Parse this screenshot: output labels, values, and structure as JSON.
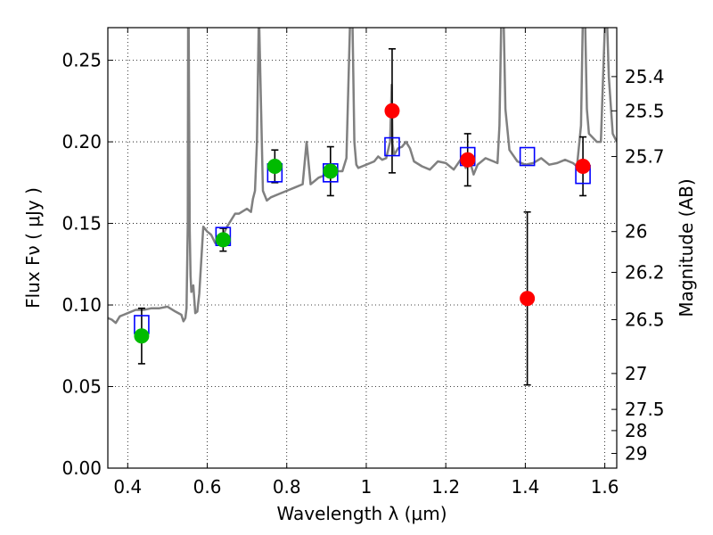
{
  "chart_data": {
    "type": "scatter",
    "xlabel": "Wavelength  λ (μm)",
    "ylabel": "Flux  Fν  ( μJy )",
    "ylabel_right": "Magnitude (AB)",
    "xlim": [
      0.35,
      1.63
    ],
    "ylim": [
      0.0,
      0.27
    ],
    "grid": true,
    "x_ticks": [
      {
        "value": 0.4,
        "label": "0.4"
      },
      {
        "value": 0.6,
        "label": "0.6"
      },
      {
        "value": 0.8,
        "label": "0.8"
      },
      {
        "value": 1.0,
        "label": "1"
      },
      {
        "value": 1.2,
        "label": "1.2"
      },
      {
        "value": 1.4,
        "label": "1.4"
      },
      {
        "value": 1.6,
        "label": "1.6"
      }
    ],
    "y_ticks": [
      {
        "value": 0.0,
        "label": "0.00"
      },
      {
        "value": 0.05,
        "label": "0.05"
      },
      {
        "value": 0.1,
        "label": "0.10"
      },
      {
        "value": 0.15,
        "label": "0.15"
      },
      {
        "value": 0.2,
        "label": "0.20"
      },
      {
        "value": 0.25,
        "label": "0.25"
      }
    ],
    "right_ticks": [
      {
        "flux": 0.24,
        "label": "25.4"
      },
      {
        "flux": 0.219,
        "label": "25.5"
      },
      {
        "flux": 0.191,
        "label": "25.7"
      },
      {
        "flux": 0.145,
        "label": "26"
      },
      {
        "flux": 0.12,
        "label": "26.2"
      },
      {
        "flux": 0.091,
        "label": "26.5"
      },
      {
        "flux": 0.058,
        "label": "27"
      },
      {
        "flux": 0.036,
        "label": "27.5"
      },
      {
        "flux": 0.023,
        "label": "28"
      },
      {
        "flux": 0.009,
        "label": "29"
      }
    ],
    "series": [
      {
        "kind": "model_spectrum",
        "color": "#808080",
        "x": [
          0.35,
          0.36,
          0.37,
          0.38,
          0.39,
          0.4,
          0.42,
          0.44,
          0.46,
          0.48,
          0.5,
          0.52,
          0.535,
          0.54,
          0.545,
          0.548,
          0.551,
          0.552,
          0.553,
          0.556,
          0.558,
          0.56,
          0.565,
          0.57,
          0.575,
          0.58,
          0.59,
          0.6,
          0.61,
          0.62,
          0.63,
          0.64,
          0.65,
          0.66,
          0.67,
          0.68,
          0.7,
          0.71,
          0.715,
          0.72,
          0.725,
          0.73,
          0.74,
          0.75,
          0.76,
          0.78,
          0.8,
          0.82,
          0.84,
          0.85,
          0.86,
          0.87,
          0.88,
          0.9,
          0.92,
          0.94,
          0.95,
          0.96,
          0.965,
          0.97,
          0.975,
          0.98,
          0.99,
          1.0,
          1.01,
          1.02,
          1.03,
          1.04,
          1.05,
          1.06,
          1.064,
          1.066,
          1.07,
          1.08,
          1.09,
          1.1,
          1.11,
          1.12,
          1.14,
          1.16,
          1.18,
          1.2,
          1.22,
          1.24,
          1.25,
          1.26,
          1.27,
          1.28,
          1.3,
          1.32,
          1.33,
          1.335,
          1.34,
          1.345,
          1.35,
          1.36,
          1.38,
          1.4,
          1.42,
          1.44,
          1.46,
          1.48,
          1.5,
          1.52,
          1.53,
          1.54,
          1.545,
          1.55,
          1.555,
          1.56,
          1.58,
          1.59,
          1.6,
          1.605,
          1.61,
          1.62,
          1.63
        ],
        "y": [
          0.092,
          0.091,
          0.089,
          0.093,
          0.094,
          0.095,
          0.097,
          0.097,
          0.098,
          0.098,
          0.099,
          0.096,
          0.094,
          0.09,
          0.092,
          0.098,
          0.15,
          0.28,
          0.28,
          0.145,
          0.118,
          0.108,
          0.112,
          0.095,
          0.096,
          0.107,
          0.148,
          0.145,
          0.143,
          0.138,
          0.14,
          0.143,
          0.148,
          0.152,
          0.156,
          0.156,
          0.159,
          0.157,
          0.165,
          0.17,
          0.2,
          0.28,
          0.17,
          0.164,
          0.166,
          0.168,
          0.17,
          0.172,
          0.174,
          0.2,
          0.174,
          0.176,
          0.178,
          0.18,
          0.182,
          0.182,
          0.19,
          0.28,
          0.28,
          0.2,
          0.186,
          0.184,
          0.185,
          0.186,
          0.187,
          0.188,
          0.191,
          0.189,
          0.19,
          0.2,
          0.235,
          0.199,
          0.192,
          0.196,
          0.197,
          0.2,
          0.196,
          0.188,
          0.185,
          0.183,
          0.188,
          0.187,
          0.183,
          0.19,
          0.184,
          0.189,
          0.18,
          0.186,
          0.19,
          0.188,
          0.187,
          0.21,
          0.28,
          0.28,
          0.22,
          0.195,
          0.188,
          0.186,
          0.187,
          0.19,
          0.186,
          0.187,
          0.189,
          0.187,
          0.185,
          0.21,
          0.28,
          0.28,
          0.22,
          0.205,
          0.2,
          0.2,
          0.27,
          0.28,
          0.24,
          0.205,
          0.2
        ]
      },
      {
        "kind": "model_photometry",
        "marker": "open-square",
        "color": "#0000ff",
        "x": [
          0.435,
          0.64,
          0.77,
          0.91,
          1.065,
          1.255,
          1.405,
          1.545
        ],
        "y": [
          0.088,
          0.142,
          0.181,
          0.181,
          0.197,
          0.191,
          0.191,
          0.18
        ]
      },
      {
        "kind": "observed_optical",
        "marker": "filled-circle",
        "color": "#00bb00",
        "x": [
          0.435,
          0.64,
          0.77,
          0.91
        ],
        "y": [
          0.081,
          0.14,
          0.185,
          0.182
        ],
        "err": [
          0.017,
          0.007,
          0.01,
          0.015
        ]
      },
      {
        "kind": "observed_nir",
        "marker": "filled-circle",
        "color": "#ff0000",
        "x": [
          1.065,
          1.255,
          1.405,
          1.545
        ],
        "y": [
          0.219,
          0.189,
          0.104,
          0.185
        ],
        "err": [
          0.038,
          0.016,
          0.053,
          0.018
        ]
      }
    ]
  }
}
